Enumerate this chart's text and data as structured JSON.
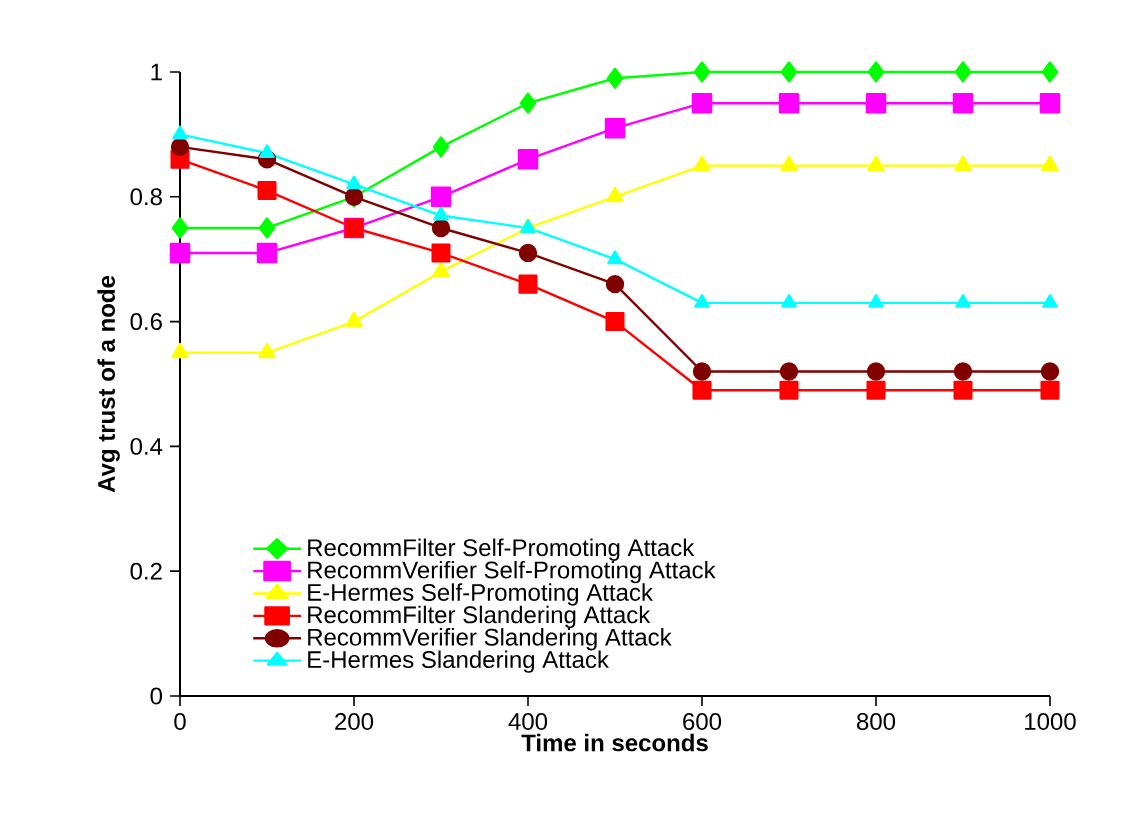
{
  "chart_data": {
    "type": "line",
    "xlabel": "Time in seconds",
    "ylabel": "Avg trust of a node",
    "x": [
      0,
      100,
      200,
      300,
      400,
      500,
      600,
      700,
      800,
      900,
      1000
    ],
    "xlim": [
      0,
      1000
    ],
    "xticks": [
      0,
      200,
      400,
      600,
      800,
      1000
    ],
    "ylim": [
      0,
      1
    ],
    "yticks": [
      0,
      0.2,
      0.4,
      0.6,
      0.8,
      1
    ],
    "grid": false,
    "legend": "bottom",
    "line_style": "solid",
    "series": [
      {
        "name": "RecommFilter Self-Promoting Attack",
        "color": "#00ff00",
        "marker": "diamond",
        "values": [
          0.75,
          0.75,
          0.8,
          0.88,
          0.95,
          0.99,
          1,
          1,
          1,
          1,
          1
        ]
      },
      {
        "name": "RecommVerifier Self-Promoting Attack",
        "color": "#ff00ff",
        "marker": "square",
        "values": [
          0.71,
          0.71,
          0.75,
          0.8,
          0.86,
          0.91,
          0.95,
          0.95,
          0.95,
          0.95,
          0.95
        ]
      },
      {
        "name": "E-Hermes Self-Promoting Attack",
        "color": "#ffff00",
        "marker": "triangle",
        "values": [
          0.55,
          0.55,
          0.6,
          0.68,
          0.75,
          0.8,
          0.85,
          0.85,
          0.85,
          0.85,
          0.85
        ]
      },
      {
        "name": "RecommFilter Slandering Attack",
        "color": "#ff0000",
        "marker": "square",
        "values": [
          0.86,
          0.81,
          0.75,
          0.71,
          0.66,
          0.6,
          0.49,
          0.49,
          0.49,
          0.49,
          0.49
        ]
      },
      {
        "name": "RecommVerifier Slandering Attack",
        "color": "#800000",
        "marker": "circle",
        "values": [
          0.88,
          0.86,
          0.8,
          0.75,
          0.71,
          0.66,
          0.52,
          0.52,
          0.52,
          0.52,
          0.52
        ]
      },
      {
        "name": "E-Hermes Slandering Attack",
        "color": "#00ffff",
        "marker": "triangle",
        "values": [
          0.9,
          0.87,
          0.82,
          0.77,
          0.75,
          0.7,
          0.63,
          0.63,
          0.63,
          0.63,
          0.63
        ]
      }
    ]
  }
}
